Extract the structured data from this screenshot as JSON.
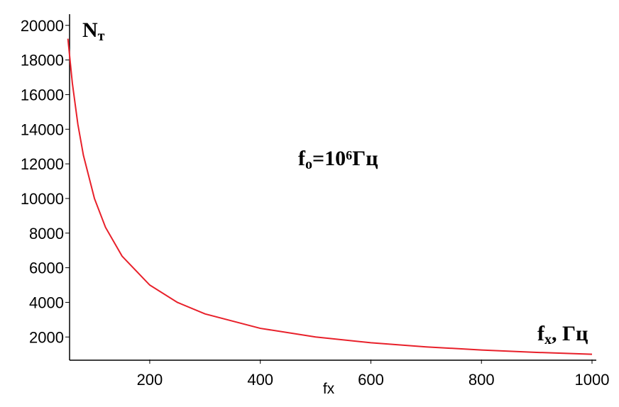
{
  "chart_data": {
    "type": "line",
    "x_label": "fx",
    "x": [
      52,
      60,
      70,
      80,
      100,
      120,
      150,
      200,
      250,
      300,
      400,
      500,
      600,
      700,
      800,
      900,
      1000
    ],
    "series": [
      {
        "color": "#e8202a",
        "values": [
          19231,
          16667,
          14286,
          12500,
          10000,
          8333,
          6667,
          5000,
          4000,
          3333,
          2500,
          2000,
          1667,
          1429,
          1250,
          1111,
          1000
        ]
      }
    ],
    "xlim": [
      55,
      1000
    ],
    "ylim": [
      700,
      20400
    ],
    "xticks": [
      200,
      400,
      600,
      800,
      1000
    ],
    "yticks": [
      2000,
      4000,
      6000,
      8000,
      10000,
      12000,
      14000,
      16000,
      18000,
      20000
    ],
    "grid": false,
    "annotations": [
      [
        {
          "text": "N"
        },
        {
          "sub": "т"
        }
      ],
      [
        {
          "text": "f"
        },
        {
          "sub": "o"
        },
        {
          "text": "=10"
        },
        {
          "sup": "6"
        },
        {
          "text": "Гц"
        }
      ],
      [
        {
          "text": "f"
        },
        {
          "sub": "x"
        },
        {
          "text": ", Гц"
        }
      ]
    ]
  }
}
